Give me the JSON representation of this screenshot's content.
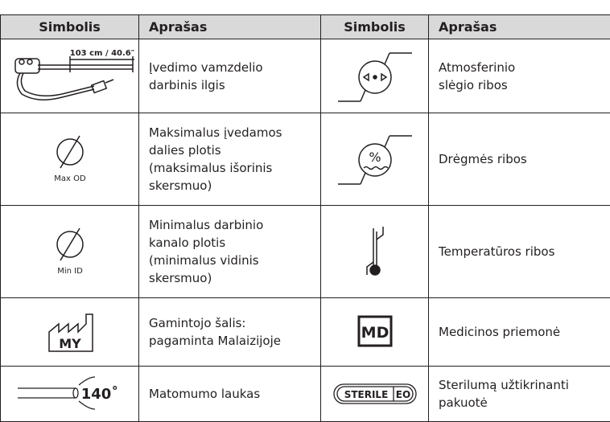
{
  "table": {
    "headers": [
      "Simbolis",
      "Aprašas",
      "Simbolis",
      "Aprašas"
    ],
    "rows": [
      {
        "left": {
          "symbol_label": "103 cm / 40.6″",
          "description": [
            "Įvedimo vamzdelio",
            "darbinis ilgis"
          ]
        },
        "right": {
          "description": [
            "Atmosferinio",
            "slėgio ribos"
          ]
        }
      },
      {
        "left": {
          "symbol_label": "Max OD",
          "description": [
            "Maksimalus įvedamos",
            "dalies plotis",
            "(maksimalus išorinis",
            "skersmuo)"
          ]
        },
        "right": {
          "symbol_label": "%",
          "description": [
            "Drėgmės ribos"
          ]
        }
      },
      {
        "left": {
          "symbol_label": "Min ID",
          "description": [
            "Minimalus darbinio",
            "kanalo plotis",
            "(minimalus vidinis",
            "skersmuo)"
          ]
        },
        "right": {
          "description": [
            "Temperatūros ribos"
          ]
        }
      },
      {
        "left": {
          "symbol_label": "MY",
          "description": [
            "Gamintojo šalis:",
            "pagaminta Malaizijoje"
          ]
        },
        "right": {
          "symbol_label": "MD",
          "description": [
            "Medicinos priemonė"
          ]
        }
      },
      {
        "left": {
          "symbol_label": "140˚",
          "description": [
            "Matomumo laukas"
          ]
        },
        "right": {
          "symbol_label": [
            "STERILE",
            "EO"
          ],
          "description": [
            "Sterilumą užtikrinanti",
            "pakuotė"
          ]
        }
      }
    ]
  }
}
